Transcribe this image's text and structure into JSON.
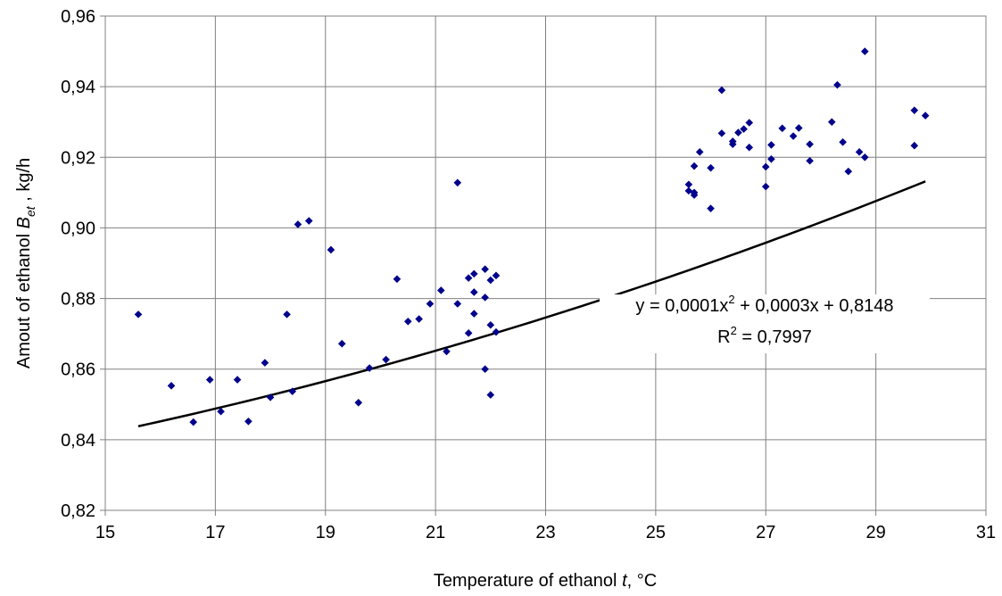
{
  "chart_data": {
    "type": "scatter",
    "xlabel": {
      "prefix": "Temperature of ethanol ",
      "var": "t",
      "suffix": ", °C"
    },
    "ylabel": {
      "prefix": "Amout of ethanol ",
      "var": "B",
      "sub": "et",
      "suffix": " , kg/h"
    },
    "xlim": [
      15,
      31
    ],
    "ylim": [
      0.82,
      0.96
    ],
    "xticks": [
      15,
      17,
      19,
      21,
      23,
      25,
      27,
      29,
      31
    ],
    "xtick_labels": [
      "15",
      "17",
      "19",
      "21",
      "23",
      "25",
      "27",
      "29",
      "31"
    ],
    "yticks": [
      0.82,
      0.84,
      0.86,
      0.88,
      0.9,
      0.92,
      0.94,
      0.96
    ],
    "ytick_labels": [
      "0,82",
      "0,84",
      "0,86",
      "0,88",
      "0,90",
      "0,92",
      "0,94",
      "0,96"
    ],
    "grid": true,
    "marker_color": "#00008b",
    "trendline_color": "#000000",
    "trendline": {
      "type": "polynomial",
      "coefficients": [
        0.0001,
        0.0003,
        0.8148
      ],
      "x_range": [
        15.6,
        29.9
      ],
      "equation": {
        "part1": "y = 0,0001x",
        "sup": "2",
        "part2": " + 0,0003x + 0,8148"
      },
      "r2": {
        "prefix": "R",
        "sup": "2",
        "suffix": " = 0,7997"
      }
    },
    "points": [
      [
        15.6,
        0.8755
      ],
      [
        16.2,
        0.8553
      ],
      [
        16.6,
        0.845
      ],
      [
        16.9,
        0.857
      ],
      [
        17.1,
        0.848
      ],
      [
        17.4,
        0.857
      ],
      [
        17.6,
        0.8452
      ],
      [
        17.9,
        0.8618
      ],
      [
        18.0,
        0.852
      ],
      [
        18.3,
        0.8755
      ],
      [
        18.4,
        0.8537
      ],
      [
        18.5,
        0.901
      ],
      [
        18.7,
        0.902
      ],
      [
        19.1,
        0.8938
      ],
      [
        19.3,
        0.8672
      ],
      [
        19.6,
        0.8505
      ],
      [
        19.8,
        0.8603
      ],
      [
        20.1,
        0.8627
      ],
      [
        20.3,
        0.8855
      ],
      [
        20.5,
        0.8735
      ],
      [
        20.7,
        0.8742
      ],
      [
        20.9,
        0.8785
      ],
      [
        21.1,
        0.8823
      ],
      [
        21.2,
        0.865
      ],
      [
        21.4,
        0.9128
      ],
      [
        21.4,
        0.8785
      ],
      [
        21.6,
        0.8858
      ],
      [
        21.6,
        0.8702
      ],
      [
        21.7,
        0.887
      ],
      [
        21.7,
        0.8818
      ],
      [
        21.7,
        0.8757
      ],
      [
        21.9,
        0.8883
      ],
      [
        21.9,
        0.8803
      ],
      [
        21.9,
        0.86
      ],
      [
        22.0,
        0.8527
      ],
      [
        22.0,
        0.8725
      ],
      [
        22.0,
        0.8852
      ],
      [
        22.1,
        0.8705
      ],
      [
        22.1,
        0.8865
      ],
      [
        25.6,
        0.9123
      ],
      [
        25.6,
        0.9105
      ],
      [
        25.7,
        0.91
      ],
      [
        25.7,
        0.9093
      ],
      [
        25.7,
        0.9175
      ],
      [
        25.8,
        0.9215
      ],
      [
        26.0,
        0.9055
      ],
      [
        26.0,
        0.917
      ],
      [
        26.2,
        0.939
      ],
      [
        26.2,
        0.9268
      ],
      [
        26.4,
        0.9245
      ],
      [
        26.4,
        0.9237
      ],
      [
        26.5,
        0.927
      ],
      [
        26.6,
        0.928
      ],
      [
        26.7,
        0.9298
      ],
      [
        26.7,
        0.9228
      ],
      [
        27.0,
        0.9117
      ],
      [
        27.0,
        0.9173
      ],
      [
        27.1,
        0.9235
      ],
      [
        27.1,
        0.9195
      ],
      [
        27.3,
        0.9282
      ],
      [
        27.5,
        0.926
      ],
      [
        27.6,
        0.9283
      ],
      [
        27.8,
        0.9237
      ],
      [
        27.8,
        0.919
      ],
      [
        28.2,
        0.93
      ],
      [
        28.3,
        0.9405
      ],
      [
        28.4,
        0.9243
      ],
      [
        28.5,
        0.916
      ],
      [
        28.7,
        0.9215
      ],
      [
        28.8,
        0.95
      ],
      [
        28.8,
        0.92
      ],
      [
        29.7,
        0.9333
      ],
      [
        29.7,
        0.9233
      ],
      [
        29.9,
        0.9318
      ]
    ]
  }
}
